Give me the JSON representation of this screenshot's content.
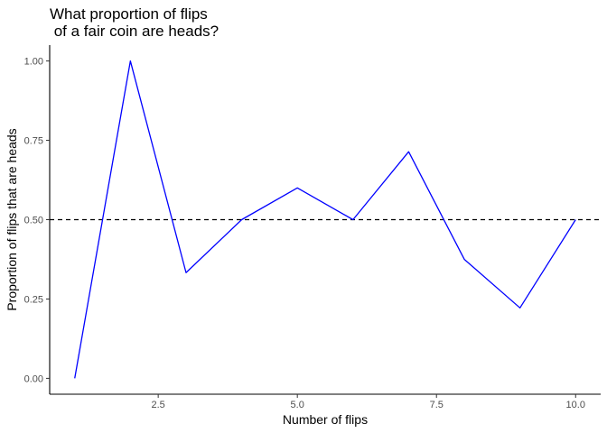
{
  "chart_data": {
    "type": "line",
    "title_lines": [
      "What proportion of flips",
      " of a fair coin are heads?"
    ],
    "xlabel": "Number of flips",
    "ylabel": "Proportion of flips that are heads",
    "x_ticks": [
      2.5,
      5.0,
      7.5,
      10.0
    ],
    "x_tick_labels": [
      "2.5",
      "5.0",
      "7.5",
      "10.0"
    ],
    "y_ticks": [
      0,
      0.25,
      0.5,
      0.75,
      1.0
    ],
    "y_tick_labels": [
      "0.00",
      "0.25",
      "0.50",
      "0.75",
      "1.00"
    ],
    "xlim": [
      0.55,
      10.45
    ],
    "ylim": [
      -0.05,
      1.05
    ],
    "grid": false,
    "series": [
      {
        "x": [
          1,
          2,
          3,
          4,
          5,
          6,
          7,
          8,
          9,
          10
        ],
        "y": [
          0.0,
          1.0,
          0.333,
          0.5,
          0.6,
          0.5,
          0.714,
          0.375,
          0.222,
          0.5
        ],
        "color": "#0000ff"
      }
    ],
    "reference_line": {
      "y": 0.5,
      "style": "dashed",
      "color": "#000000"
    }
  }
}
